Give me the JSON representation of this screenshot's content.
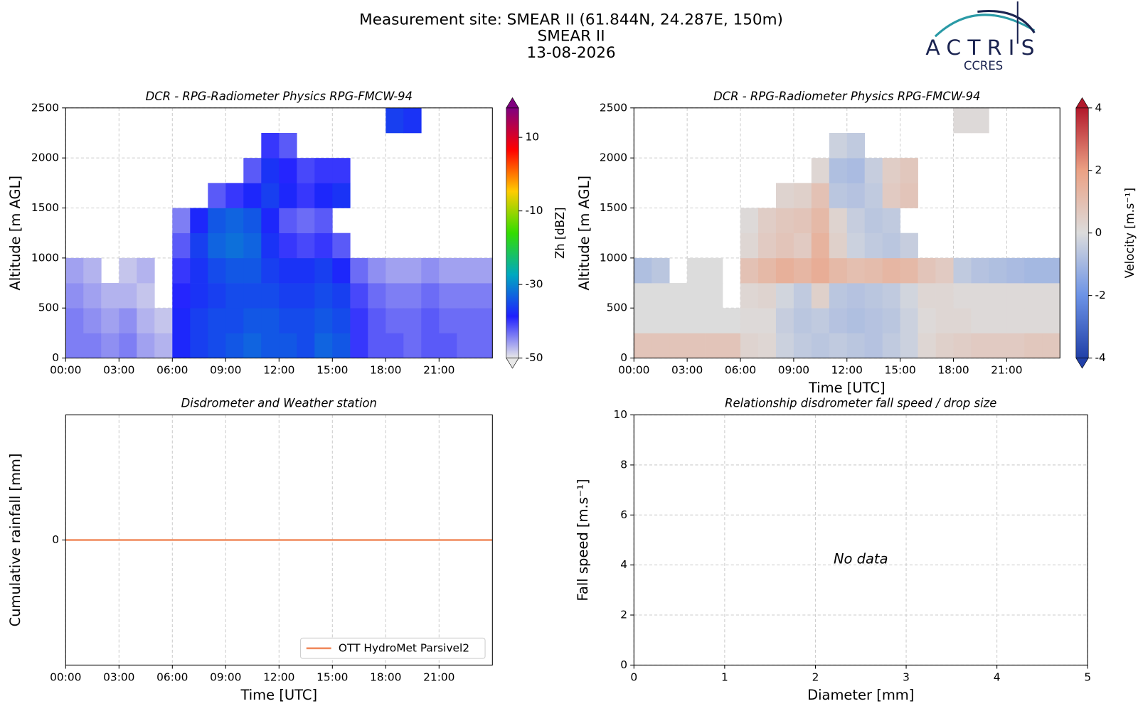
{
  "header": {
    "lines": [
      "Measurement site: SMEAR II (61.844N, 24.287E, 150m)",
      "SMEAR II",
      "13-08-2026"
    ],
    "logo": "ACTRIS",
    "logo_sub": "CCRES"
  },
  "chart_data": [
    {
      "type": "heatmap",
      "title": "DCR - RPG-Radiometer Physics RPG-FMCW-94",
      "ylabel": "Altitude [m AGL]",
      "grid": true,
      "x_bins": [
        0,
        1,
        2,
        3,
        4,
        5,
        6,
        7,
        8,
        9,
        10,
        11,
        12,
        13,
        14,
        15,
        16,
        17,
        18,
        19,
        20,
        21,
        22,
        23,
        24
      ],
      "y_bins": [
        0,
        250,
        500,
        750,
        1000,
        1250,
        1500,
        1750,
        2000,
        2250,
        2500
      ],
      "xlim": [
        0,
        24
      ],
      "ylim": [
        0,
        2500
      ],
      "xticks": [
        {
          "value": 0,
          "label": "00:00"
        },
        {
          "value": 3,
          "label": "03:00"
        },
        {
          "value": 6,
          "label": "06:00"
        },
        {
          "value": 9,
          "label": "09:00"
        },
        {
          "value": 12,
          "label": "12:00"
        },
        {
          "value": 15,
          "label": "15:00"
        },
        {
          "value": 18,
          "label": "18:00"
        },
        {
          "value": 21,
          "label": "21:00"
        }
      ],
      "yticks": [
        0,
        500,
        1000,
        1500,
        2000,
        2500
      ],
      "values": [
        [
          -44,
          -44,
          -45,
          -44,
          -46,
          -47,
          -38,
          -36,
          -35,
          -34,
          -33,
          -34,
          -34,
          -35,
          -33,
          -34,
          -40,
          -42,
          -42,
          -43,
          -42,
          -42,
          -43,
          -43
        ],
        [
          -44,
          -45,
          -46,
          -45,
          -47,
          -48,
          -38,
          -36,
          -35,
          -35,
          -34,
          -34,
          -35,
          -35,
          -34,
          -35,
          -40,
          -42,
          -43,
          -43,
          -42,
          -43,
          -43,
          -43
        ],
        [
          -45,
          -46,
          -47,
          -47,
          -48,
          null,
          -39,
          -37,
          -36,
          -35,
          -35,
          -35,
          -36,
          -36,
          -35,
          -36,
          -41,
          -43,
          -44,
          -44,
          -43,
          -44,
          -44,
          -44
        ],
        [
          -46,
          -47,
          null,
          -48,
          -47,
          null,
          -40,
          -37,
          -35,
          -34,
          -34,
          -36,
          -37,
          -37,
          -36,
          -38,
          -43,
          -45,
          -46,
          -46,
          -45,
          -46,
          -46,
          -46
        ],
        [
          null,
          null,
          null,
          null,
          null,
          null,
          -42,
          -36,
          -33,
          -32,
          -33,
          -37,
          -40,
          -41,
          -40,
          -42,
          null,
          null,
          null,
          null,
          null,
          null,
          null,
          null
        ],
        [
          null,
          null,
          null,
          null,
          null,
          null,
          -44,
          -38,
          -34,
          -33,
          -34,
          -38,
          -42,
          -43,
          -42,
          null,
          null,
          null,
          null,
          null,
          null,
          null,
          null,
          null
        ],
        [
          null,
          null,
          null,
          null,
          null,
          null,
          null,
          null,
          -42,
          -40,
          -38,
          -36,
          -38,
          -40,
          -38,
          -37,
          null,
          null,
          null,
          null,
          null,
          null,
          null,
          null
        ],
        [
          null,
          null,
          null,
          null,
          null,
          null,
          null,
          null,
          null,
          null,
          -42,
          -37,
          -39,
          -41,
          -40,
          -40,
          null,
          null,
          null,
          null,
          null,
          null,
          null,
          null
        ],
        [
          null,
          null,
          null,
          null,
          null,
          null,
          null,
          null,
          null,
          null,
          null,
          -40,
          -42,
          null,
          null,
          null,
          null,
          null,
          null,
          null,
          null,
          null,
          null,
          null
        ],
        [
          null,
          null,
          null,
          null,
          null,
          null,
          null,
          null,
          null,
          null,
          null,
          null,
          null,
          null,
          null,
          null,
          null,
          null,
          -36,
          -37,
          null,
          null,
          null,
          null
        ]
      ],
      "colorbar": {
        "label": "Zh [dBZ]",
        "lim": [
          -50,
          18
        ],
        "ticks": [
          -50,
          -30,
          -10,
          10
        ],
        "colormap": [
          "#e8e8e8",
          "#1f1fff",
          "#00a8c0",
          "#33dd00",
          "#ffcc00",
          "#ff0000",
          "#800080"
        ]
      }
    },
    {
      "type": "heatmap",
      "title": "DCR - RPG-Radiometer Physics RPG-FMCW-94",
      "ylabel": "Altitude [m AGL]",
      "xlabel": "Time [UTC]",
      "grid": true,
      "x_bins": [
        0,
        1,
        2,
        3,
        4,
        5,
        6,
        7,
        8,
        9,
        10,
        11,
        12,
        13,
        14,
        15,
        16,
        17,
        18,
        19,
        20,
        21,
        22,
        23,
        24
      ],
      "y_bins": [
        0,
        250,
        500,
        750,
        1000,
        1250,
        1500,
        1750,
        2000,
        2250,
        2500
      ],
      "xlim": [
        0,
        24
      ],
      "ylim": [
        0,
        2500
      ],
      "xticks": [
        {
          "value": 0,
          "label": "00:00"
        },
        {
          "value": 3,
          "label": "03:00"
        },
        {
          "value": 6,
          "label": "06:00"
        },
        {
          "value": 9,
          "label": "09:00"
        },
        {
          "value": 12,
          "label": "12:00"
        },
        {
          "value": 15,
          "label": "15:00"
        },
        {
          "value": 18,
          "label": "18:00"
        },
        {
          "value": 21,
          "label": "21:00"
        }
      ],
      "yticks": [
        0,
        500,
        1000,
        1500,
        2000,
        2500
      ],
      "values": [
        [
          0.8,
          0.8,
          0.8,
          0.8,
          0.8,
          0.8,
          0.3,
          0.2,
          -0.3,
          -0.5,
          -0.6,
          -0.5,
          -0.6,
          -0.7,
          -0.5,
          -0.3,
          0.2,
          0.4,
          0.5,
          0.6,
          0.6,
          0.6,
          0.7,
          0.7
        ],
        [
          0,
          0,
          0,
          0,
          0,
          0,
          0.1,
          0.1,
          -0.4,
          -0.6,
          -0.5,
          -0.7,
          -0.8,
          -0.7,
          -0.6,
          -0.3,
          0.1,
          0.2,
          0.2,
          0.1,
          0.1,
          0.1,
          0.1,
          0.1
        ],
        [
          0,
          0,
          0,
          0,
          0,
          null,
          0.2,
          0.3,
          -0.2,
          -0.5,
          0.4,
          -0.6,
          -0.7,
          -0.6,
          -0.5,
          -0.2,
          0.2,
          0.2,
          0.1,
          0.1,
          0.1,
          0.1,
          0.1,
          0.1
        ],
        [
          -0.8,
          -0.6,
          null,
          0,
          0,
          null,
          0.9,
          1.2,
          1.5,
          1.3,
          1.6,
          1.2,
          1.0,
          1.1,
          1.3,
          1.2,
          0.8,
          0.6,
          -0.5,
          -0.7,
          -0.8,
          -0.9,
          -1.0,
          -1.0
        ],
        [
          null,
          null,
          null,
          null,
          null,
          null,
          0.2,
          0.6,
          0.8,
          0.6,
          1.4,
          0.4,
          -0.3,
          -0.5,
          -0.6,
          -0.4,
          null,
          null,
          null,
          null,
          null,
          null,
          null,
          null
        ],
        [
          null,
          null,
          null,
          null,
          null,
          null,
          0.1,
          0.5,
          0.7,
          0.8,
          1.2,
          0.3,
          -0.4,
          -0.6,
          -0.5,
          null,
          null,
          null,
          null,
          null,
          null,
          null,
          null,
          null
        ],
        [
          null,
          null,
          null,
          null,
          null,
          null,
          null,
          null,
          0.3,
          0.4,
          0.9,
          -0.6,
          -0.7,
          -0.5,
          0.6,
          0.8,
          null,
          null,
          null,
          null,
          null,
          null,
          null,
          null
        ],
        [
          null,
          null,
          null,
          null,
          null,
          null,
          null,
          null,
          null,
          null,
          0.2,
          -0.8,
          -0.9,
          -0.4,
          0.5,
          0.7,
          null,
          null,
          null,
          null,
          null,
          null,
          null,
          null
        ],
        [
          null,
          null,
          null,
          null,
          null,
          null,
          null,
          null,
          null,
          null,
          null,
          -0.3,
          -0.5,
          null,
          null,
          null,
          null,
          null,
          null,
          null,
          null,
          null,
          null,
          null
        ],
        [
          null,
          null,
          null,
          null,
          null,
          null,
          null,
          null,
          null,
          null,
          null,
          null,
          null,
          null,
          null,
          null,
          null,
          null,
          0.1,
          0.1,
          null,
          null,
          null,
          null
        ]
      ],
      "colorbar": {
        "label": "Velocity [m.s⁻¹]",
        "lim": [
          -4,
          4
        ],
        "ticks": [
          -4,
          -2,
          0,
          2,
          4
        ],
        "colormap": [
          "#2140a8",
          "#6c93e6",
          "#dcdcdc",
          "#eba184",
          "#b2182b"
        ]
      }
    },
    {
      "type": "line",
      "title": "Disdrometer and Weather station",
      "xlabel": "Time [UTC]",
      "ylabel": "Cumulative rainfall [mm]",
      "grid": true,
      "x": [
        0,
        24
      ],
      "xlim": [
        0,
        24
      ],
      "ylim": [
        -1,
        1
      ],
      "xticks": [
        {
          "value": 0,
          "label": "00:00"
        },
        {
          "value": 3,
          "label": "03:00"
        },
        {
          "value": 6,
          "label": "06:00"
        },
        {
          "value": 9,
          "label": "09:00"
        },
        {
          "value": 12,
          "label": "12:00"
        },
        {
          "value": 15,
          "label": "15:00"
        },
        {
          "value": 18,
          "label": "18:00"
        },
        {
          "value": 21,
          "label": "21:00"
        }
      ],
      "yticks": [
        0
      ],
      "legend": "lower right",
      "series": [
        {
          "name": "OTT HydroMet Parsivel2",
          "color": "#f08a5d",
          "values": [
            0,
            0
          ]
        }
      ]
    },
    {
      "type": "scatter",
      "title": "Relationship disdrometer fall speed / drop size",
      "xlabel": "Diameter [mm]",
      "ylabel": "Fall speed [m.s⁻¹]",
      "grid": true,
      "x": [],
      "values": [],
      "xlim": [
        0,
        5
      ],
      "ylim": [
        0,
        10
      ],
      "xticks": [
        0,
        1,
        2,
        3,
        4,
        5
      ],
      "yticks": [
        0,
        2,
        4,
        6,
        8,
        10
      ],
      "annotation": "No data"
    }
  ]
}
